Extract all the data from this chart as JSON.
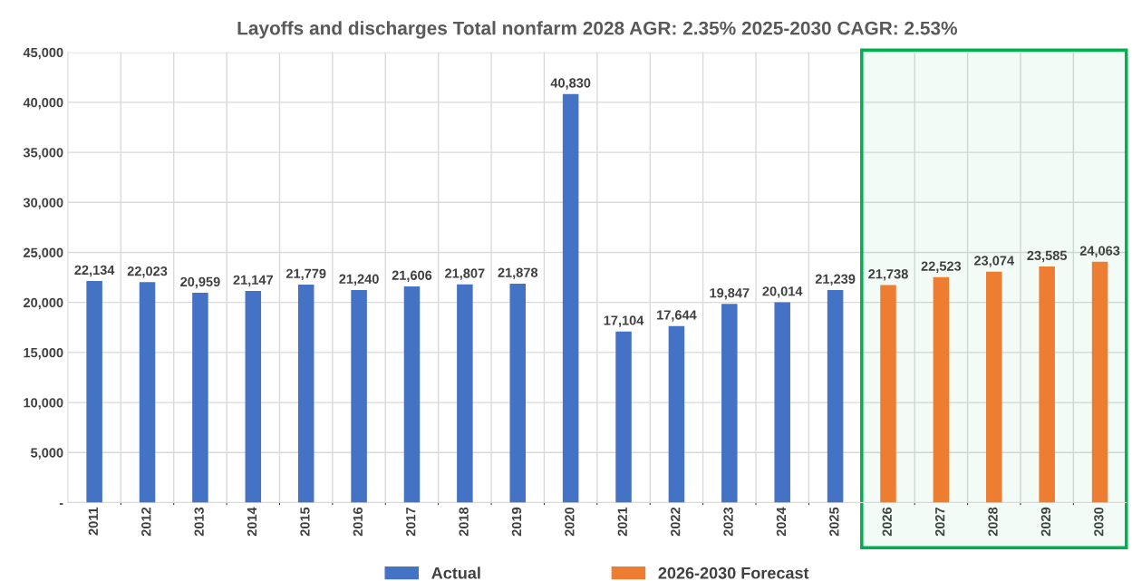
{
  "chart_data": {
    "type": "bar",
    "title": "Layoffs and discharges Total nonfarm 2028 AGR: 2.35% 2025-2030 CAGR: 2.53%",
    "categories": [
      "2011",
      "2012",
      "2013",
      "2014",
      "2015",
      "2016",
      "2017",
      "2018",
      "2019",
      "2020",
      "2021",
      "2022",
      "2023",
      "2024",
      "2025",
      "2026",
      "2027",
      "2028",
      "2029",
      "2030"
    ],
    "series": [
      {
        "name": "Actual",
        "color": "#4472c4",
        "values": [
          22134,
          22023,
          20959,
          21147,
          21779,
          21240,
          21606,
          21807,
          21878,
          40830,
          17104,
          17644,
          19847,
          20014,
          21239,
          null,
          null,
          null,
          null,
          null
        ],
        "value_labels": [
          "22,134",
          "22,023",
          "20,959",
          "21,147",
          "21,779",
          "21,240",
          "21,606",
          "21,807",
          "21,878",
          "40,830",
          "17,104",
          "17,644",
          "19,847",
          "20,014",
          "21,239",
          null,
          null,
          null,
          null,
          null
        ]
      },
      {
        "name": "2026-2030 Forecast",
        "color": "#ed7d31",
        "values": [
          null,
          null,
          null,
          null,
          null,
          null,
          null,
          null,
          null,
          null,
          null,
          null,
          null,
          null,
          null,
          21738,
          22523,
          23074,
          23585,
          24063
        ],
        "value_labels": [
          null,
          null,
          null,
          null,
          null,
          null,
          null,
          null,
          null,
          null,
          null,
          null,
          null,
          null,
          null,
          "21,738",
          "22,523",
          "23,074",
          "23,585",
          "24,063"
        ]
      }
    ],
    "ylim": [
      0,
      45000
    ],
    "yticks": [
      {
        "value": 0,
        "label": "-"
      },
      {
        "value": 5000,
        "label": "5,000"
      },
      {
        "value": 10000,
        "label": "10,000"
      },
      {
        "value": 15000,
        "label": "15,000"
      },
      {
        "value": 20000,
        "label": "20,000"
      },
      {
        "value": 25000,
        "label": "25,000"
      },
      {
        "value": 30000,
        "label": "30,000"
      },
      {
        "value": 35000,
        "label": "35,000"
      },
      {
        "value": 40000,
        "label": "40,000"
      },
      {
        "value": 45000,
        "label": "45,000"
      }
    ],
    "bands": [
      {
        "axis": "x",
        "from": "2026",
        "to": "2030",
        "color": "#00b050"
      }
    ],
    "grid": true,
    "legend": "bottom"
  }
}
